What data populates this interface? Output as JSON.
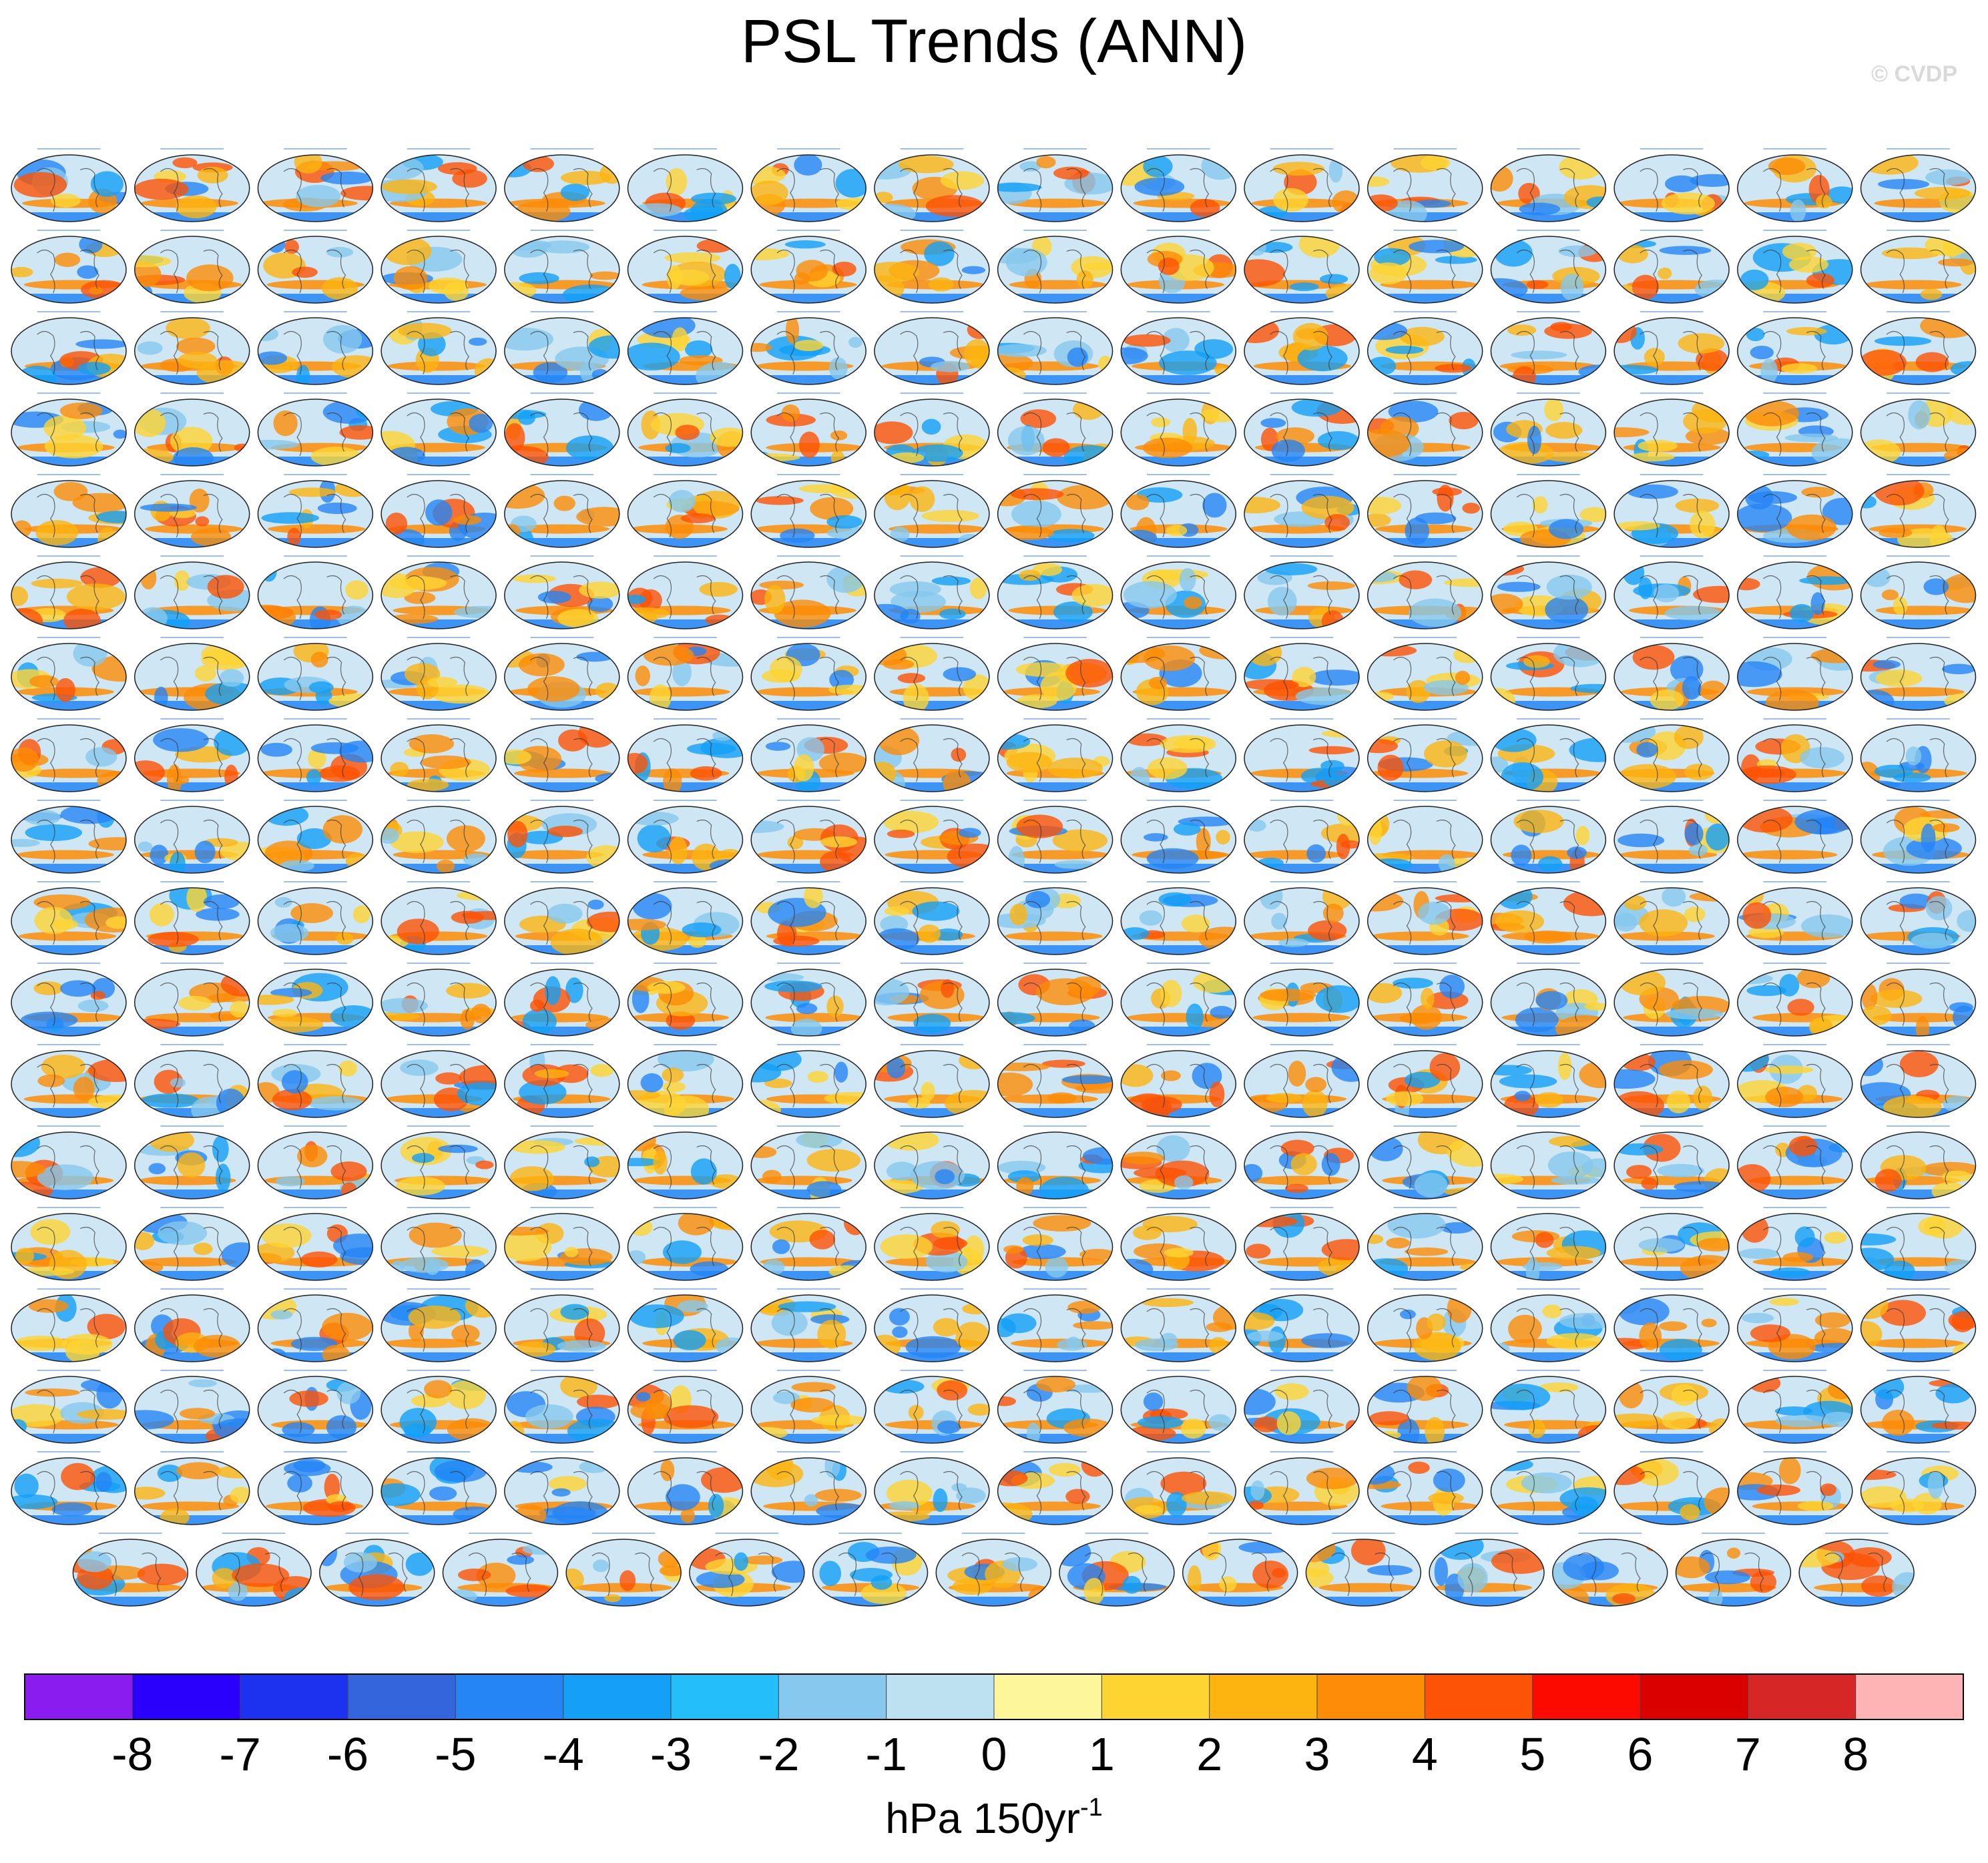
{
  "title": "PSL Trends (ANN)",
  "watermark": "© CVDP",
  "chart_data": {
    "type": "heatmap",
    "title": "PSL Trends (ANN)",
    "variable": "PSL",
    "season": "ANN",
    "panel_layout": {
      "rows": 18,
      "columns": 16,
      "last_row_panels": 15,
      "total_panels": 287
    },
    "panel_projection": "global map",
    "colorbar": {
      "units_text": "hPa 150yr",
      "units_superscript": "-1",
      "tick_labels": [
        "-8",
        "-7",
        "-6",
        "-5",
        "-4",
        "-3",
        "-2",
        "-1",
        "0",
        "1",
        "2",
        "3",
        "4",
        "5",
        "6",
        "7",
        "8"
      ],
      "levels": [
        -8,
        -7,
        -6,
        -5,
        -4,
        -3,
        -2,
        -1,
        0,
        1,
        2,
        3,
        4,
        5,
        6,
        7,
        8
      ],
      "colors": [
        "#8a1cf0",
        "#2a00fc",
        "#1c32ef",
        "#3465dc",
        "#2585f5",
        "#13a0f6",
        "#24befa",
        "#86c8ee",
        "#bee1f2",
        "#fef69a",
        "#fed433",
        "#fdb410",
        "#fd8c06",
        "#fd5305",
        "#fb0a00",
        "#db0000",
        "#d72626",
        "#feb4b4"
      ]
    },
    "style": {
      "ocean": "#cfe6f4",
      "positive_blob_colors": [
        "#fed433",
        "#fdb410",
        "#fd8c06",
        "#fd5305"
      ],
      "negative_blob_colors": [
        "#86c8ee",
        "#2585f5",
        "#13a0f6"
      ]
    }
  }
}
